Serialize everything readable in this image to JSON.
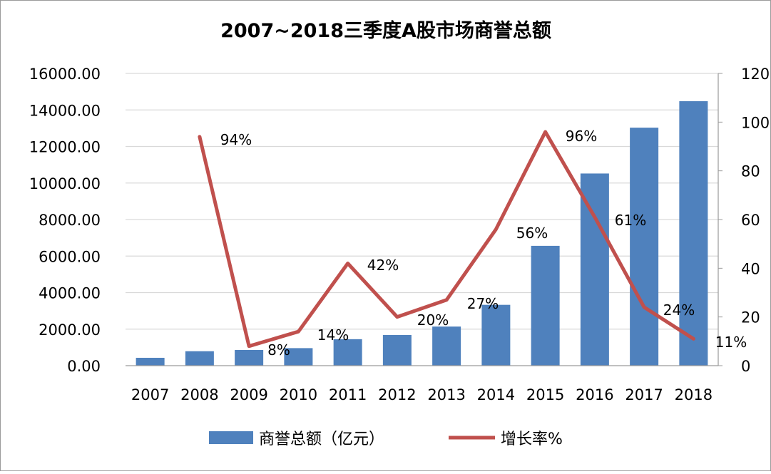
{
  "chart_data": {
    "type": "bar+line",
    "title": "2007~2018三季度A股市场商誉总额",
    "categories": [
      "2007",
      "2008",
      "2009",
      "2010",
      "2011",
      "2012",
      "2013",
      "2014",
      "2015",
      "2016",
      "2017",
      "2018"
    ],
    "series": [
      {
        "name": "商誉总额（亿元）",
        "type": "bar",
        "axis": "left",
        "color": "#4F81BD",
        "values": [
          430,
          790,
          860,
          960,
          1450,
          1680,
          2140,
          3330,
          6560,
          10520,
          13030,
          14480
        ]
      },
      {
        "name": "增长率%",
        "type": "line",
        "axis": "right",
        "color": "#C0504D",
        "values": [
          null,
          94,
          8,
          14,
          42,
          20,
          27,
          56,
          96,
          61,
          24,
          11
        ],
        "labels": [
          "",
          "94%",
          "8%",
          "14%",
          "42%",
          "20%",
          "27%",
          "56%",
          "96%",
          "61%",
          "24%",
          "11%"
        ]
      }
    ],
    "left_axis": {
      "min": 0,
      "max": 16000,
      "ticks": [
        "0.00",
        "2000.00",
        "4000.00",
        "6000.00",
        "8000.00",
        "10000.00",
        "12000.00",
        "14000.00",
        "16000.00"
      ]
    },
    "right_axis": {
      "min": 0,
      "max": 120,
      "ticks": [
        "0",
        "20",
        "40",
        "60",
        "80",
        "100",
        "120"
      ]
    },
    "grid": true,
    "legend_position": "bottom"
  }
}
